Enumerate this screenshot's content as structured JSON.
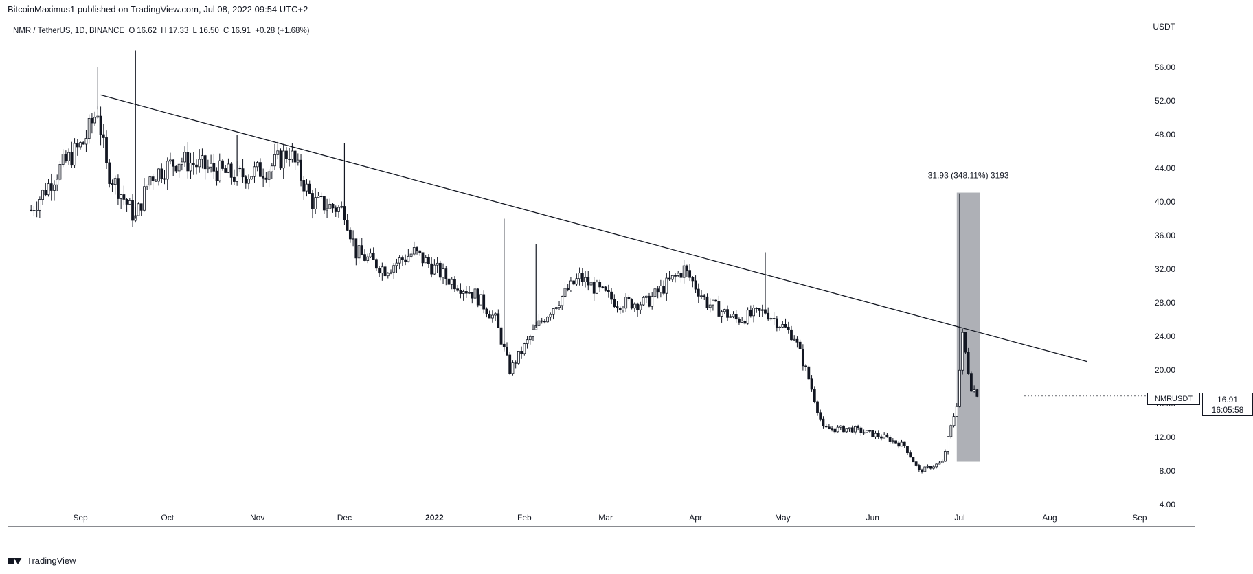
{
  "header": {
    "published_text": "BitcoinMaximus1 published on TradingView.com, Jul 08, 2022 09:54 UTC+2"
  },
  "symbol": {
    "title": "NMR / TetherUS, 1D, BINANCE",
    "open_label": "O",
    "open": "16.62",
    "high_label": "H",
    "high": "17.33",
    "low_label": "L",
    "low": "16.50",
    "close_label": "C",
    "close": "16.91",
    "change": "+0.28 (+1.68%)"
  },
  "price_axis": {
    "currency": "USDT",
    "labels": [
      "56.00",
      "52.00",
      "48.00",
      "44.00",
      "40.00",
      "36.00",
      "32.00",
      "28.00",
      "24.00",
      "20.00",
      "16.00",
      "12.00",
      "8.00",
      "4.00"
    ]
  },
  "last_price": {
    "symbol": "NMRUSDT",
    "price": "16.91",
    "countdown": "16:05:58"
  },
  "measure": {
    "label": "31.93 (348.11%) 3193"
  },
  "footer": {
    "brand": "TradingView"
  },
  "colors": {
    "background": "#ffffff",
    "candle": "#131722",
    "axis": "#131722",
    "measure_box": "#787b86",
    "chart_bg": "#ffffff"
  },
  "chart_data": {
    "type": "candlestick",
    "title": "NMR / TetherUS, 1D, BINANCE",
    "xlabel": "",
    "ylabel": "USDT",
    "ylim": [
      4,
      56
    ],
    "x_ticks": [
      "Sep",
      "Oct",
      "Nov",
      "Dec",
      "2022",
      "Feb",
      "Mar",
      "Apr",
      "May",
      "Jun",
      "Jul",
      "Aug",
      "Sep"
    ],
    "price_points": [
      {
        "date": "2021-08-15",
        "close": 39
      },
      {
        "date": "2021-08-25",
        "close": 44
      },
      {
        "date": "2021-09-02",
        "close": 47
      },
      {
        "date": "2021-09-07",
        "close": 51
      },
      {
        "date": "2021-09-10",
        "close": 44
      },
      {
        "date": "2021-09-20",
        "close": 38
      },
      {
        "date": "2021-09-25",
        "close": 43
      },
      {
        "date": "2021-10-05",
        "close": 45
      },
      {
        "date": "2021-10-15",
        "close": 44
      },
      {
        "date": "2021-10-25",
        "close": 43
      },
      {
        "date": "2021-11-05",
        "close": 44
      },
      {
        "date": "2021-11-12",
        "close": 46
      },
      {
        "date": "2021-11-20",
        "close": 40
      },
      {
        "date": "2021-12-01",
        "close": 39
      },
      {
        "date": "2021-12-05",
        "close": 34
      },
      {
        "date": "2021-12-15",
        "close": 32
      },
      {
        "date": "2021-12-25",
        "close": 34
      },
      {
        "date": "2022-01-05",
        "close": 31
      },
      {
        "date": "2022-01-15",
        "close": 29
      },
      {
        "date": "2022-01-22",
        "close": 26
      },
      {
        "date": "2022-01-27",
        "close": 20
      },
      {
        "date": "2022-02-05",
        "close": 25
      },
      {
        "date": "2022-02-12",
        "close": 28
      },
      {
        "date": "2022-02-20",
        "close": 31
      },
      {
        "date": "2022-03-05",
        "close": 28
      },
      {
        "date": "2022-03-15",
        "close": 28
      },
      {
        "date": "2022-03-28",
        "close": 32
      },
      {
        "date": "2022-04-05",
        "close": 28
      },
      {
        "date": "2022-04-15",
        "close": 26
      },
      {
        "date": "2022-04-25",
        "close": 27
      },
      {
        "date": "2022-05-05",
        "close": 24
      },
      {
        "date": "2022-05-10",
        "close": 19
      },
      {
        "date": "2022-05-15",
        "close": 13
      },
      {
        "date": "2022-05-25",
        "close": 13
      },
      {
        "date": "2022-06-05",
        "close": 12
      },
      {
        "date": "2022-06-12",
        "close": 11
      },
      {
        "date": "2022-06-17",
        "close": 8
      },
      {
        "date": "2022-06-25",
        "close": 9
      },
      {
        "date": "2022-06-30",
        "close": 16
      },
      {
        "date": "2022-07-02",
        "close": 24
      },
      {
        "date": "2022-07-05",
        "close": 18
      },
      {
        "date": "2022-07-08",
        "close": 16.91
      }
    ],
    "wicks": [
      {
        "date": "2021-09-20",
        "high": 58
      },
      {
        "date": "2021-09-07",
        "high": 56
      },
      {
        "date": "2021-10-25",
        "high": 48
      },
      {
        "date": "2021-12-01",
        "high": 47
      },
      {
        "date": "2022-01-25",
        "high": 38
      },
      {
        "date": "2022-02-05",
        "high": 35
      },
      {
        "date": "2022-04-25",
        "high": 34
      },
      {
        "date": "2022-07-01",
        "high": 41
      }
    ],
    "trendline": {
      "start": {
        "date": "2021-09-08",
        "price": 52.7
      },
      "end": {
        "date": "2022-08-14",
        "price": 21
      }
    },
    "measure_box": {
      "start": "2022-06-30",
      "end": "2022-07-08",
      "low": 9.1,
      "high": 41.1
    }
  }
}
